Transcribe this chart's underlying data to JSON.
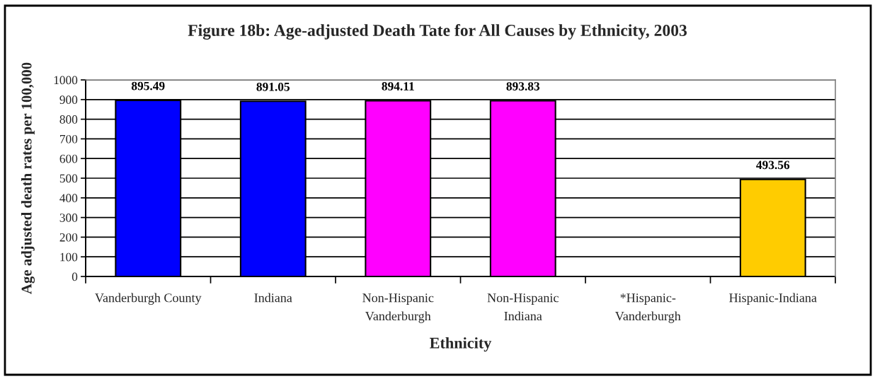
{
  "chart_data": {
    "type": "bar",
    "title": "Figure 18b: Age-adjusted Death Tate for All Causes by Ethnicity, 2003",
    "xlabel": "Ethnicity",
    "ylabel": "Age adjusted death rates per 100,000",
    "categories": [
      "Vanderburgh County",
      "Indiana",
      "Non-Hispanic\nVanderburgh",
      "Non-Hispanic\nIndiana",
      "*Hispanic-\nVanderburgh",
      "Hispanic-Indiana"
    ],
    "values": [
      895.49,
      891.05,
      894.11,
      893.83,
      null,
      493.56
    ],
    "colors": [
      "#0000ff",
      "#0000ff",
      "#ff00ff",
      "#ff00ff",
      null,
      "#ffcc00"
    ],
    "ylim": [
      0,
      1000
    ],
    "yticks": [
      0,
      100,
      200,
      300,
      400,
      500,
      600,
      700,
      800,
      900,
      1000
    ],
    "grid": "y",
    "data_labels": true
  }
}
